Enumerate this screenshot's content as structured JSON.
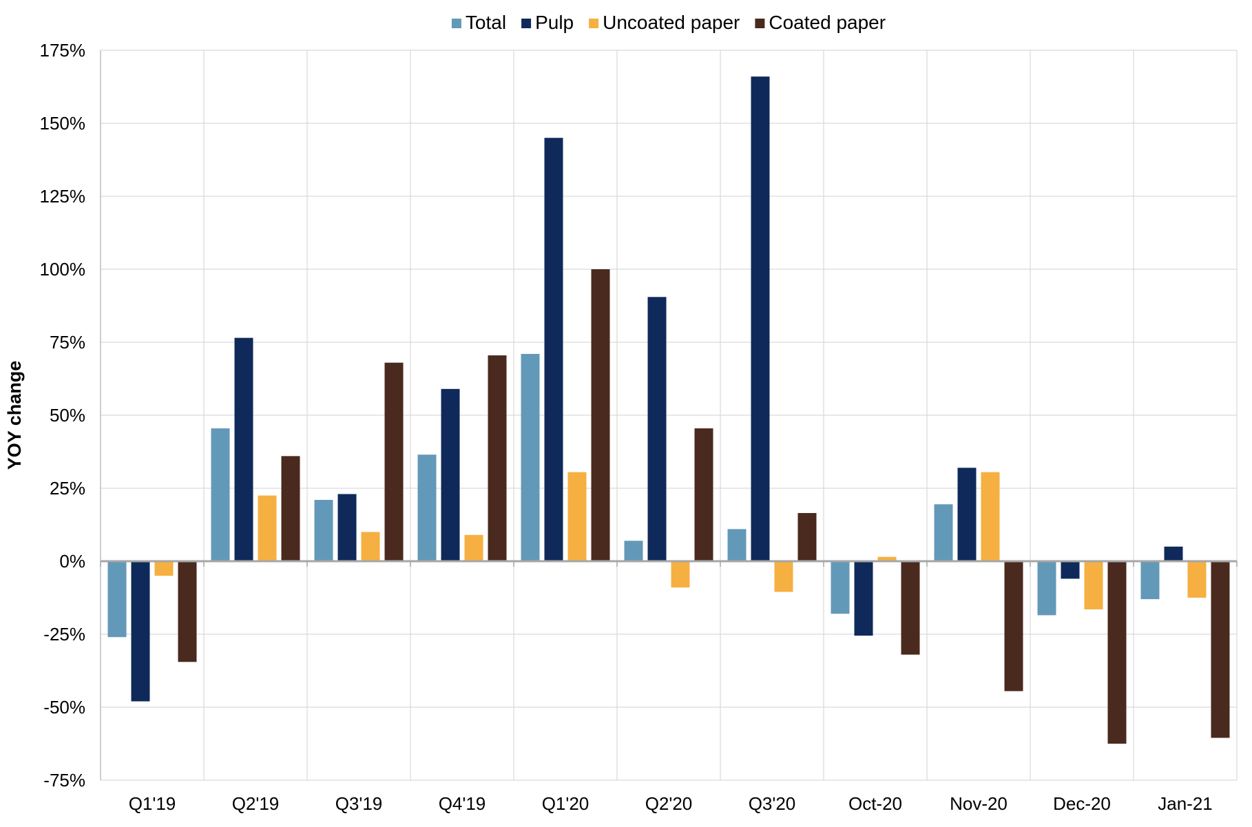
{
  "chart_data": {
    "type": "bar",
    "title": "",
    "xlabel": "",
    "ylabel": "YOY change",
    "ylim": [
      -75,
      175
    ],
    "yticks": [
      -75,
      -50,
      -25,
      0,
      25,
      50,
      75,
      100,
      125,
      150,
      175
    ],
    "y_tick_labels": [
      "-75%",
      "-50%",
      "-25%",
      "0%",
      "25%",
      "50%",
      "75%",
      "100%",
      "125%",
      "150%",
      "175%"
    ],
    "grid": true,
    "legend_position": "top",
    "categories": [
      "Q1'19",
      "Q2'19",
      "Q3'19",
      "Q4'19",
      "Q1'20",
      "Q2'20",
      "Q3'20",
      "Oct-20",
      "Nov-20",
      "Dec-20",
      "Jan-21"
    ],
    "series": [
      {
        "name": "Total",
        "color": "#6399B8",
        "values": [
          -26,
          45.5,
          21,
          36.5,
          71,
          7,
          11,
          -18,
          19.5,
          -18.5,
          -13
        ]
      },
      {
        "name": "Pulp",
        "color": "#0F2A5A",
        "values": [
          -48,
          76.5,
          23,
          59,
          145,
          90.5,
          166,
          -25.5,
          32,
          -6,
          5
        ]
      },
      {
        "name": "Uncoated paper",
        "color": "#F5B041",
        "values": [
          -5,
          22.5,
          10,
          9,
          30.5,
          -9,
          -10.5,
          1.5,
          30.5,
          -16.5,
          -12.5
        ]
      },
      {
        "name": "Coated paper",
        "color": "#4A2A1E",
        "values": [
          -34.5,
          36,
          68,
          70.5,
          100,
          45.5,
          16.5,
          -32,
          -44.5,
          -62.5,
          -60.5
        ]
      }
    ]
  }
}
